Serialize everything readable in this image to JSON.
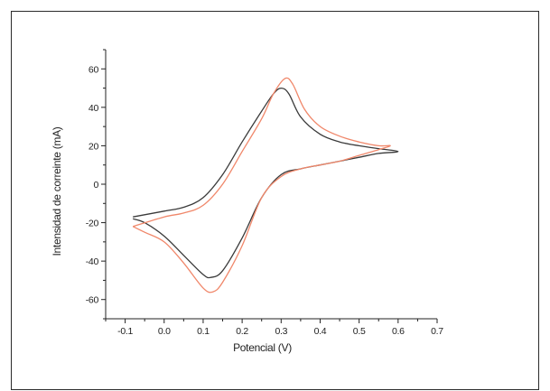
{
  "chart_data": {
    "type": "line",
    "title": "",
    "xlabel": "Potencial (V)",
    "ylabel": "Intensidad de correinte (mA)",
    "xlim": [
      -0.15,
      0.7
    ],
    "ylim": [
      -70,
      70
    ],
    "xticks": [
      -0.1,
      0.0,
      0.1,
      0.2,
      0.3,
      0.4,
      0.5,
      0.6,
      0.7
    ],
    "xtick_labels": [
      "-0.1",
      "0.0",
      "0.1",
      "0.2",
      "0.3",
      "0.4",
      "0.5",
      "0.6",
      "0.7"
    ],
    "yticks": [
      -60,
      -40,
      -20,
      0,
      20,
      40,
      60
    ],
    "ytick_labels": [
      "-60",
      "-40",
      "-20",
      "0",
      "20",
      "40",
      "60"
    ],
    "grid": false,
    "legend": "none",
    "series": [
      {
        "color": "#3a3a3a",
        "x": [
          -0.08,
          0.0,
          0.05,
          0.1,
          0.15,
          0.2,
          0.25,
          0.28,
          0.3,
          0.32,
          0.35,
          0.4,
          0.45,
          0.5,
          0.55,
          0.6,
          0.55,
          0.5,
          0.45,
          0.4,
          0.35,
          0.3,
          0.25,
          0.2,
          0.15,
          0.12,
          0.1,
          0.05,
          0.0,
          -0.05,
          -0.08
        ],
        "y": [
          -17,
          -14,
          -12,
          -7,
          5,
          22,
          38,
          47,
          50,
          47,
          35,
          26,
          22,
          20,
          18.5,
          17,
          16,
          14,
          12,
          10,
          8,
          5,
          -7,
          -28,
          -45,
          -48.5,
          -47,
          -37,
          -27,
          -20,
          -18
        ]
      },
      {
        "color": "#f0876a",
        "x": [
          -0.08,
          0.0,
          0.05,
          0.1,
          0.15,
          0.2,
          0.25,
          0.28,
          0.31,
          0.33,
          0.36,
          0.4,
          0.45,
          0.5,
          0.55,
          0.58,
          0.55,
          0.5,
          0.45,
          0.4,
          0.35,
          0.3,
          0.25,
          0.2,
          0.15,
          0.125,
          0.1,
          0.05,
          0.0,
          -0.05,
          -0.08
        ],
        "y": [
          -22,
          -17,
          -15,
          -11,
          0,
          17,
          34,
          47,
          55,
          52,
          39,
          30,
          25,
          22,
          20,
          20,
          18,
          15,
          12,
          10,
          8,
          4,
          -7,
          -32,
          -51,
          -56,
          -54,
          -41,
          -30,
          -25,
          -22
        ]
      }
    ]
  }
}
